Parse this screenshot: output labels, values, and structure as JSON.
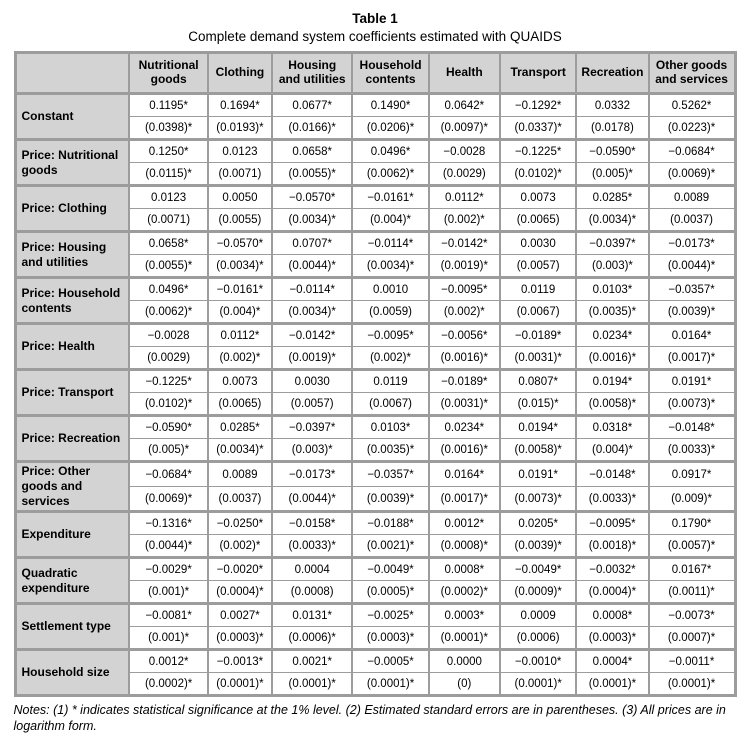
{
  "title": "Table 1",
  "subtitle": "Complete demand system coefficients estimated with QUAIDS",
  "colors": {
    "header_background": "#d3d3d3",
    "table_border": "#9c9c9c",
    "text": "#000000",
    "page_background": "#ffffff"
  },
  "table": {
    "corner_label": "",
    "columns": [
      "Nutritional goods",
      "Clothing",
      "Housing and utilities",
      "Household contents",
      "Health",
      "Transport",
      "Recreation",
      "Other goods and services"
    ],
    "rows": [
      {
        "label": "Constant",
        "coef": [
          "0.1195*",
          "0.1694*",
          "0.0677*",
          "0.1490*",
          "0.0642*",
          "−0.1292*",
          "0.0332",
          "0.5262*"
        ],
        "se": [
          "(0.0398)*",
          "(0.0193)*",
          "(0.0166)*",
          "(0.0206)*",
          "(0.0097)*",
          "(0.0337)*",
          "(0.0178)",
          "(0.0223)*"
        ]
      },
      {
        "label": "Price: Nutritional goods",
        "coef": [
          "0.1250*",
          "0.0123",
          "0.0658*",
          "0.0496*",
          "−0.0028",
          "−0.1225*",
          "−0.0590*",
          "−0.0684*"
        ],
        "se": [
          "(0.0115)*",
          "(0.0071)",
          "(0.0055)*",
          "(0.0062)*",
          "(0.0029)",
          "(0.0102)*",
          "(0.005)*",
          "(0.0069)*"
        ]
      },
      {
        "label": "Price: Clothing",
        "coef": [
          "0.0123",
          "0.0050",
          "−0.0570*",
          "−0.0161*",
          "0.0112*",
          "0.0073",
          "0.0285*",
          "0.0089"
        ],
        "se": [
          "(0.0071)",
          "(0.0055)",
          "(0.0034)*",
          "(0.004)*",
          "(0.002)*",
          "(0.0065)",
          "(0.0034)*",
          "(0.0037)"
        ]
      },
      {
        "label": "Price: Housing and utilities",
        "coef": [
          "0.0658*",
          "−0.0570*",
          "0.0707*",
          "−0.0114*",
          "−0.0142*",
          "0.0030",
          "−0.0397*",
          "−0.0173*"
        ],
        "se": [
          "(0.0055)*",
          "(0.0034)*",
          "(0.0044)*",
          "(0.0034)*",
          "(0.0019)*",
          "(0.0057)",
          "(0.003)*",
          "(0.0044)*"
        ]
      },
      {
        "label": "Price: Household contents",
        "coef": [
          "0.0496*",
          "−0.0161*",
          "−0.0114*",
          "0.0010",
          "−0.0095*",
          "0.0119",
          "0.0103*",
          "−0.0357*"
        ],
        "se": [
          "(0.0062)*",
          "(0.004)*",
          "(0.0034)*",
          "(0.0059)",
          "(0.002)*",
          "(0.0067)",
          "(0.0035)*",
          "(0.0039)*"
        ]
      },
      {
        "label": "Price: Health",
        "coef": [
          "−0.0028",
          "0.0112*",
          "−0.0142*",
          "−0.0095*",
          "−0.0056*",
          "−0.0189*",
          "0.0234*",
          "0.0164*"
        ],
        "se": [
          "(0.0029)",
          "(0.002)*",
          "(0.0019)*",
          "(0.002)*",
          "(0.0016)*",
          "(0.0031)*",
          "(0.0016)*",
          "(0.0017)*"
        ]
      },
      {
        "label": "Price: Transport",
        "coef": [
          "−0.1225*",
          "0.0073",
          "0.0030",
          "0.0119",
          "−0.0189*",
          "0.0807*",
          "0.0194*",
          "0.0191*"
        ],
        "se": [
          "(0.0102)*",
          "(0.0065)",
          "(0.0057)",
          "(0.0067)",
          "(0.0031)*",
          "(0.015)*",
          "(0.0058)*",
          "(0.0073)*"
        ]
      },
      {
        "label": "Price: Recreation",
        "coef": [
          "−0.0590*",
          "0.0285*",
          "−0.0397*",
          "0.0103*",
          "0.0234*",
          "0.0194*",
          "0.0318*",
          "−0.0148*"
        ],
        "se": [
          "(0.005)*",
          "(0.0034)*",
          "(0.003)*",
          "(0.0035)*",
          "(0.0016)*",
          "(0.0058)*",
          "(0.004)*",
          "(0.0033)*"
        ]
      },
      {
        "label": "Price: Other goods and services",
        "coef": [
          "−0.0684*",
          "0.0089",
          "−0.0173*",
          "−0.0357*",
          "0.0164*",
          "0.0191*",
          "−0.0148*",
          "0.0917*"
        ],
        "se": [
          "(0.0069)*",
          "(0.0037)",
          "(0.0044)*",
          "(0.0039)*",
          "(0.0017)*",
          "(0.0073)*",
          "(0.0033)*",
          "(0.009)*"
        ]
      },
      {
        "label": "Expenditure",
        "coef": [
          "−0.1316*",
          "−0.0250*",
          "−0.0158*",
          "−0.0188*",
          "0.0012*",
          "0.0205*",
          "−0.0095*",
          "0.1790*"
        ],
        "se": [
          "(0.0044)*",
          "(0.002)*",
          "(0.0033)*",
          "(0.0021)*",
          "(0.0008)*",
          "(0.0039)*",
          "(0.0018)*",
          "(0.0057)*"
        ]
      },
      {
        "label": "Quadratic expenditure",
        "coef": [
          "−0.0029*",
          "−0.0020*",
          "0.0004",
          "−0.0049*",
          "0.0008*",
          "−0.0049*",
          "−0.0032*",
          "0.0167*"
        ],
        "se": [
          "(0.001)*",
          "(0.0004)*",
          "(0.0008)",
          "(0.0005)*",
          "(0.0002)*",
          "(0.0009)*",
          "(0.0004)*",
          "(0.0011)*"
        ]
      },
      {
        "label": "Settlement type",
        "coef": [
          "−0.0081*",
          "0.0027*",
          "0.0131*",
          "−0.0025*",
          "0.0003*",
          "0.0009",
          "0.0008*",
          "−0.0073*"
        ],
        "se": [
          "(0.001)*",
          "(0.0003)*",
          "(0.0006)*",
          "(0.0003)*",
          "(0.0001)*",
          "(0.0006)",
          "(0.0003)*",
          "(0.0007)*"
        ]
      },
      {
        "label": "Household size",
        "coef": [
          "0.0012*",
          "−0.0013*",
          "0.0021*",
          "−0.0005*",
          "0.0000",
          "−0.0010*",
          "0.0004*",
          "−0.0011*"
        ],
        "se": [
          "(0.0002)*",
          "(0.0001)*",
          "(0.0001)*",
          "(0.0001)*",
          "(0)",
          "(0.0001)*",
          "(0.0001)*",
          "(0.0001)*"
        ]
      }
    ]
  },
  "notes": "Notes: (1) * indicates statistical significance at the 1% level. (2) Estimated standard errors are in parentheses. (3) All prices are in logarithm form."
}
